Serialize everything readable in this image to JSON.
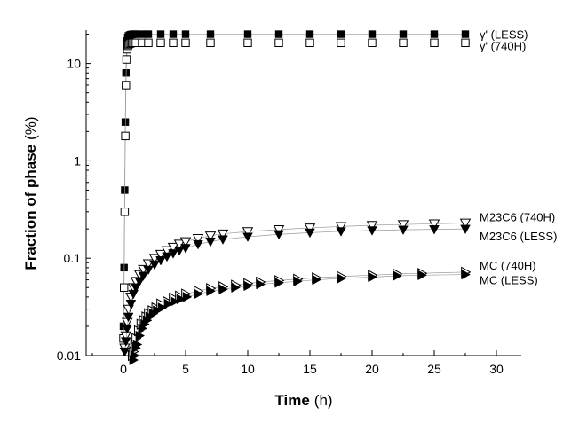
{
  "chart_data": {
    "type": "scatter",
    "title": "",
    "xlabel": "Time",
    "xlabel_unit": "(h)",
    "ylabel": "Fraction of phase",
    "ylabel_unit": "(%)",
    "xlim": [
      -3,
      32
    ],
    "ylim": [
      0.01,
      22
    ],
    "yscale": "log",
    "x_ticks": [
      0,
      5,
      10,
      15,
      20,
      25,
      30
    ],
    "x_tick_labels": [
      "0",
      "5",
      "10",
      "15",
      "20",
      "25",
      "30"
    ],
    "y_ticks": [
      0.01,
      0.1,
      1,
      10
    ],
    "y_tick_labels": [
      "0.01",
      "0.1",
      "1",
      "10"
    ],
    "grid": false,
    "series": [
      {
        "name": "γ' (LESS)",
        "marker": "square-filled",
        "x": [
          0,
          0.05,
          0.1,
          0.15,
          0.2,
          0.25,
          0.3,
          0.35,
          0.4,
          0.5,
          0.6,
          0.7,
          0.8,
          1,
          1.5,
          2,
          3,
          4,
          5,
          7,
          10,
          12.5,
          15,
          17.5,
          20,
          22.5,
          25,
          27.5
        ],
        "values": [
          0.02,
          0.08,
          0.5,
          2.5,
          8,
          14,
          17,
          18.5,
          19.2,
          19.6,
          19.8,
          19.9,
          20,
          20,
          20,
          20,
          20,
          20,
          20,
          20,
          20,
          20,
          20,
          20,
          20,
          20,
          20,
          20
        ]
      },
      {
        "name": "γ' (740H)",
        "marker": "square-open",
        "x": [
          0,
          0.05,
          0.1,
          0.15,
          0.2,
          0.25,
          0.3,
          0.35,
          0.4,
          0.5,
          0.6,
          0.7,
          0.8,
          1,
          1.5,
          2,
          3,
          4,
          5,
          7,
          10,
          12.5,
          15,
          17.5,
          20,
          22.5,
          25,
          27.5
        ],
        "values": [
          0.015,
          0.05,
          0.3,
          1.8,
          6,
          11,
          14,
          15.2,
          15.7,
          16,
          16.2,
          16.3,
          16.3,
          16.3,
          16.3,
          16.3,
          16.3,
          16.3,
          16.3,
          16.3,
          16.3,
          16.3,
          16.3,
          16.3,
          16.3,
          16.3,
          16.3,
          16.3
        ]
      },
      {
        "name": "M23C6 (740H)",
        "marker": "triangle-down-open",
        "x": [
          0.1,
          0.2,
          0.3,
          0.4,
          0.6,
          0.8,
          1,
          1.3,
          1.6,
          2,
          2.5,
          3,
          3.5,
          4,
          4.5,
          5,
          6,
          7,
          8,
          10,
          12.5,
          15,
          17.5,
          20,
          22.5,
          25,
          27.5
        ],
        "values": [
          0.012,
          0.016,
          0.022,
          0.03,
          0.04,
          0.05,
          0.058,
          0.068,
          0.077,
          0.088,
          0.1,
          0.11,
          0.12,
          0.13,
          0.14,
          0.148,
          0.16,
          0.17,
          0.178,
          0.188,
          0.197,
          0.205,
          0.212,
          0.218,
          0.222,
          0.226,
          0.23
        ]
      },
      {
        "name": "M23C6 (LESS)",
        "marker": "triangle-down-filled",
        "x": [
          0.1,
          0.2,
          0.3,
          0.4,
          0.6,
          0.8,
          1,
          1.3,
          1.6,
          2,
          2.5,
          3,
          3.5,
          4,
          4.5,
          5,
          6,
          7,
          8,
          10,
          12.5,
          15,
          17.5,
          20,
          22.5,
          25,
          27.5
        ],
        "values": [
          0.011,
          0.014,
          0.019,
          0.025,
          0.034,
          0.043,
          0.05,
          0.058,
          0.066,
          0.076,
          0.086,
          0.095,
          0.104,
          0.112,
          0.12,
          0.127,
          0.139,
          0.148,
          0.156,
          0.166,
          0.176,
          0.183,
          0.189,
          0.193,
          0.196,
          0.198,
          0.2
        ]
      },
      {
        "name": "MC (740H)",
        "marker": "triangle-right-open",
        "x": [
          0.7,
          0.8,
          0.9,
          1,
          1.2,
          1.4,
          1.6,
          1.8,
          2,
          2.3,
          2.6,
          3,
          3.5,
          4,
          4.5,
          5,
          6,
          7,
          8,
          9,
          10,
          11,
          12.5,
          14,
          15.5,
          17.5,
          20,
          22,
          24,
          27.5
        ],
        "values": [
          0.01,
          0.011,
          0.013,
          0.015,
          0.018,
          0.021,
          0.023,
          0.025,
          0.027,
          0.029,
          0.031,
          0.034,
          0.036,
          0.039,
          0.041,
          0.043,
          0.046,
          0.049,
          0.051,
          0.053,
          0.055,
          0.057,
          0.059,
          0.061,
          0.063,
          0.065,
          0.067,
          0.069,
          0.07,
          0.072
        ]
      },
      {
        "name": "MC (LESS)",
        "marker": "triangle-right-filled",
        "x": [
          0.8,
          0.9,
          1,
          1.1,
          1.3,
          1.5,
          1.7,
          1.9,
          2.1,
          2.4,
          2.7,
          3.1,
          3.6,
          4.1,
          4.6,
          5.1,
          6,
          7,
          8,
          9,
          10,
          11,
          12.5,
          14,
          15.5,
          17.5,
          20,
          22,
          24,
          27.5
        ],
        "values": [
          0.009,
          0.01,
          0.012,
          0.013,
          0.016,
          0.019,
          0.021,
          0.023,
          0.025,
          0.027,
          0.029,
          0.031,
          0.034,
          0.036,
          0.038,
          0.04,
          0.043,
          0.046,
          0.048,
          0.05,
          0.052,
          0.054,
          0.056,
          0.058,
          0.06,
          0.062,
          0.064,
          0.066,
          0.067,
          0.068
        ]
      }
    ]
  }
}
